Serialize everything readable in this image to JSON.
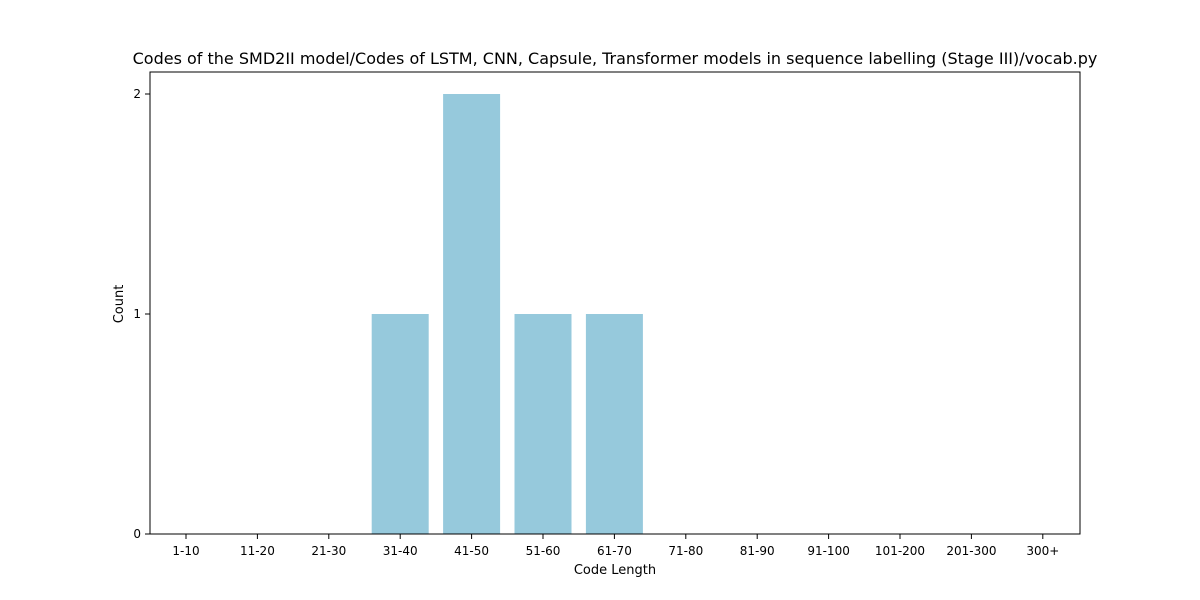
{
  "chart_data": {
    "type": "bar",
    "title": "Codes of the SMD2II model/Codes of LSTM, CNN, Capsule, Transformer models in sequence labelling (Stage III)/vocab.py",
    "xlabel": "Code Length",
    "ylabel": "Count",
    "categories": [
      "1-10",
      "11-20",
      "21-30",
      "31-40",
      "41-50",
      "51-60",
      "61-70",
      "71-80",
      "81-90",
      "91-100",
      "101-200",
      "201-300",
      "300+"
    ],
    "values": [
      0,
      0,
      0,
      1,
      2,
      1,
      1,
      0,
      0,
      0,
      0,
      0,
      0
    ],
    "ylim": [
      0,
      2.1
    ],
    "yticks": [
      "0",
      "1",
      "2"
    ],
    "grid": false,
    "legend": "none",
    "bar_color": "#96c9dc"
  }
}
